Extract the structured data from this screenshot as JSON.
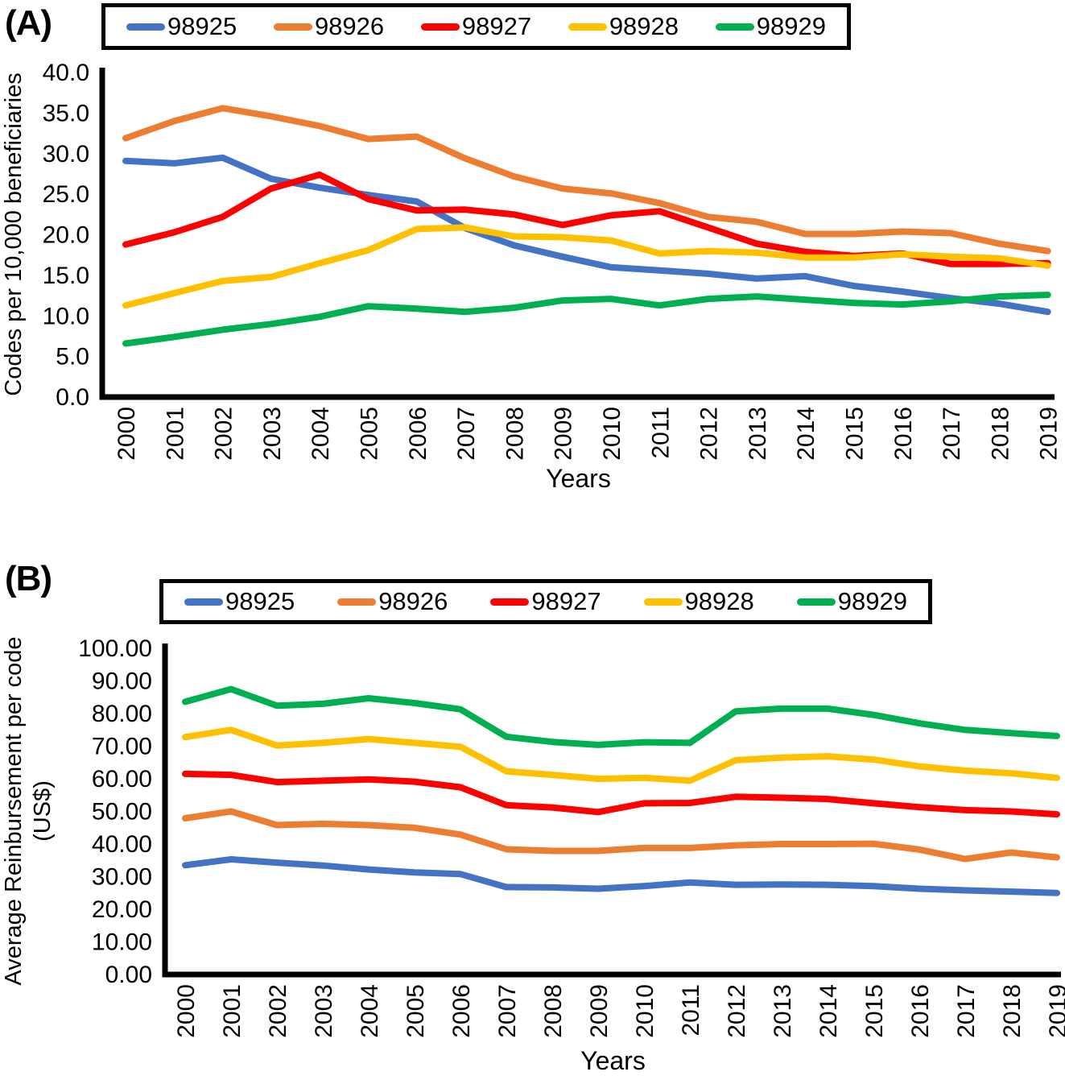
{
  "figure": {
    "panel_a": {
      "label": "(A)"
    },
    "panel_b": {
      "label": "(B)"
    }
  },
  "chart_data": [
    {
      "type": "line",
      "panel": "A",
      "xlabel": "Years",
      "ylabel": "Codes per 10,000 beneficiaries",
      "ylabel_line2": "",
      "x": [
        2000,
        2001,
        2002,
        2003,
        2004,
        2005,
        2006,
        2007,
        2008,
        2009,
        2010,
        2011,
        2012,
        2013,
        2014,
        2015,
        2016,
        2017,
        2018,
        2019
      ],
      "ylim": [
        0,
        40
      ],
      "ytick_step": 5,
      "ytick_decimals": 1,
      "grid": false,
      "legend_position": "top",
      "series": [
        {
          "name": "98925",
          "color": "#4472C4",
          "values": [
            29.1,
            28.8,
            29.5,
            26.9,
            25.8,
            24.9,
            24.1,
            20.8,
            18.7,
            17.3,
            16.0,
            15.6,
            15.2,
            14.6,
            14.9,
            13.7,
            13.0,
            12.2,
            11.5,
            10.5
          ]
        },
        {
          "name": "98926",
          "color": "#ED7D31",
          "values": [
            31.9,
            34.0,
            35.6,
            34.6,
            33.4,
            31.8,
            32.1,
            29.4,
            27.2,
            25.7,
            25.1,
            23.9,
            22.2,
            21.6,
            20.1,
            20.1,
            20.4,
            20.2,
            18.9,
            18.0
          ]
        },
        {
          "name": "98927",
          "color": "#FF0000",
          "values": [
            18.8,
            20.3,
            22.2,
            25.7,
            27.4,
            24.4,
            23.0,
            23.1,
            22.5,
            21.2,
            22.4,
            22.9,
            20.9,
            18.9,
            17.9,
            17.4,
            17.7,
            16.4,
            16.4,
            16.5
          ]
        },
        {
          "name": "98928",
          "color": "#FFC000",
          "values": [
            11.3,
            12.8,
            14.3,
            14.8,
            16.5,
            18.1,
            20.7,
            20.9,
            19.8,
            19.7,
            19.3,
            17.7,
            18.0,
            17.8,
            17.2,
            17.2,
            17.6,
            17.3,
            17.1,
            16.2
          ]
        },
        {
          "name": "98929",
          "color": "#00B050",
          "values": [
            6.6,
            7.4,
            8.3,
            9.0,
            9.9,
            11.2,
            10.9,
            10.5,
            11.0,
            11.9,
            12.1,
            11.3,
            12.1,
            12.4,
            12.0,
            11.6,
            11.4,
            11.8,
            12.4,
            12.6
          ]
        }
      ]
    },
    {
      "type": "line",
      "panel": "B",
      "xlabel": "Years",
      "ylabel": "Average Reinbursement per code",
      "ylabel_line2": "(US$)",
      "x": [
        2000,
        2001,
        2002,
        2003,
        2004,
        2005,
        2006,
        2007,
        2008,
        2009,
        2010,
        2011,
        2012,
        2013,
        2014,
        2015,
        2016,
        2017,
        2018,
        2019
      ],
      "ylim": [
        0,
        100
      ],
      "ytick_step": 10,
      "ytick_decimals": 2,
      "grid": false,
      "legend_position": "top",
      "series": [
        {
          "name": "98925",
          "color": "#4472C4",
          "values": [
            33.5,
            35.3,
            34.3,
            33.4,
            32.2,
            31.3,
            30.8,
            26.8,
            26.7,
            26.3,
            27.1,
            28.2,
            27.5,
            27.6,
            27.5,
            27.1,
            26.3,
            25.8,
            25.4,
            25.0
          ]
        },
        {
          "name": "98926",
          "color": "#ED7D31",
          "values": [
            47.9,
            50.0,
            45.8,
            46.2,
            45.8,
            45.0,
            42.9,
            38.4,
            37.9,
            37.9,
            38.8,
            38.8,
            39.6,
            40.0,
            40.0,
            40.1,
            38.3,
            35.4,
            37.4,
            35.9
          ]
        },
        {
          "name": "98927",
          "color": "#FF0000",
          "values": [
            61.5,
            61.2,
            59.0,
            59.4,
            59.8,
            59.1,
            57.4,
            51.9,
            51.2,
            49.8,
            52.5,
            52.6,
            54.5,
            54.2,
            53.8,
            52.5,
            51.3,
            50.4,
            50.0,
            49.1
          ]
        },
        {
          "name": "98928",
          "color": "#FFC000",
          "values": [
            72.8,
            75.0,
            70.2,
            71.0,
            72.2,
            71.0,
            69.8,
            62.3,
            61.2,
            60.0,
            60.3,
            59.4,
            65.7,
            66.5,
            66.9,
            65.9,
            63.8,
            62.5,
            61.7,
            60.3
          ]
        },
        {
          "name": "98929",
          "color": "#00B050",
          "values": [
            83.6,
            87.5,
            82.4,
            83.0,
            84.7,
            83.2,
            81.3,
            72.9,
            71.3,
            70.4,
            71.2,
            71.0,
            80.7,
            81.5,
            81.5,
            79.6,
            77.0,
            75.0,
            74.0,
            73.1
          ]
        }
      ]
    }
  ]
}
